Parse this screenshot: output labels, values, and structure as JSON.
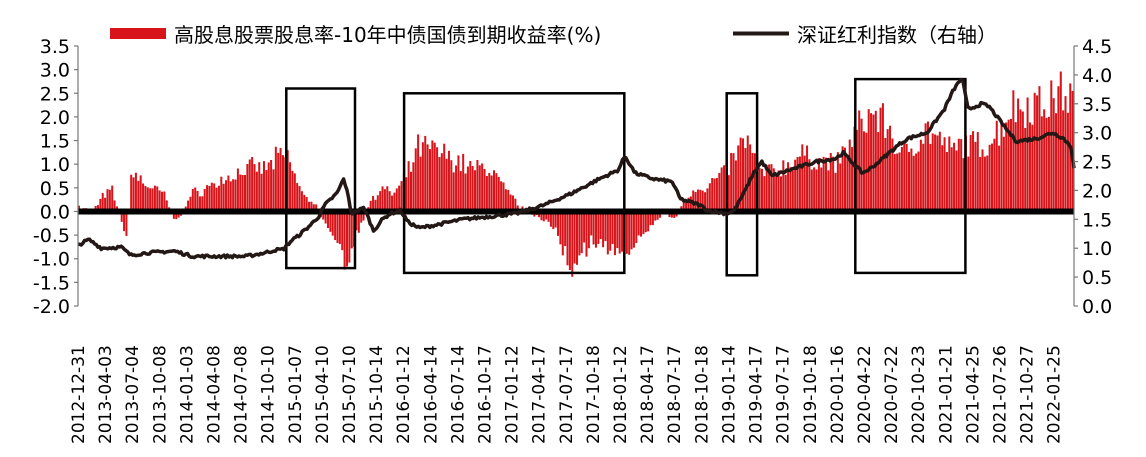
{
  "chart_data": {
    "type": "bar+line",
    "legend_position": "top",
    "grid": false,
    "colors": {
      "bars": "#d7141a",
      "line": "#231815",
      "zero_line": "#000000",
      "boxes": "#000000"
    },
    "series": [
      {
        "name": "高股息股票股息率-10年中债国债到期收益率(%)",
        "type": "bar",
        "axis": "left"
      },
      {
        "name": "深证红利指数（右轴）",
        "type": "line",
        "axis": "right"
      }
    ],
    "left_axis": {
      "min": -2.0,
      "max": 3.5,
      "ticks": [
        "3.5",
        "3.0",
        "2.5",
        "2.0",
        "1.5",
        "1.0",
        "0.5",
        "0.0",
        "-0.5",
        "-1.0",
        "-1.5",
        "-2.0"
      ]
    },
    "right_axis": {
      "min": 0.0,
      "max": 4.5,
      "ticks": [
        "4.5",
        "4.0",
        "3.5",
        "3.0",
        "2.5",
        "2.0",
        "1.5",
        "1.0",
        "0.5",
        "0.0"
      ]
    },
    "x_ticks": [
      "2012-12-31",
      "2013-04-03",
      "2013-07-04",
      "2013-10-08",
      "2014-01-03",
      "2014-04-08",
      "2014-07-08",
      "2014-10-10",
      "2015-01-07",
      "2015-04-10",
      "2015-07-10",
      "2015-10-14",
      "2016-01-12",
      "2016-04-14",
      "2016-07-14",
      "2016-10-17",
      "2017-01-12",
      "2017-04-17",
      "2017-07-17",
      "2017-10-18",
      "2018-01-12",
      "2018-04-17",
      "2018-07-17",
      "2018-10-18",
      "2019-01-14",
      "2019-04-17",
      "2019-07-17",
      "2019-10-18",
      "2020-01-16",
      "2020-04-22",
      "2020-07-22",
      "2020-10-23",
      "2021-01-21",
      "2021-04-25",
      "2021-07-26",
      "2021-10-27",
      "2022-01-25"
    ],
    "spread_keypoints": [
      [
        "2012-12-31",
        0.1
      ],
      [
        "2013-02-15",
        0.0
      ],
      [
        "2013-03-15",
        0.3
      ],
      [
        "2013-04-20",
        0.5
      ],
      [
        "2013-06-10",
        -0.6
      ],
      [
        "2013-06-25",
        0.9
      ],
      [
        "2013-08-20",
        0.6
      ],
      [
        "2013-10-15",
        0.4
      ],
      [
        "2013-11-20",
        -0.3
      ],
      [
        "2013-12-20",
        0.1
      ],
      [
        "2014-01-15",
        0.4
      ],
      [
        "2014-03-20",
        0.6
      ],
      [
        "2014-05-20",
        0.8
      ],
      [
        "2014-07-20",
        1.0
      ],
      [
        "2014-09-20",
        1.0
      ],
      [
        "2014-11-10",
        1.3
      ],
      [
        "2014-12-10",
        1.2
      ],
      [
        "2015-01-05",
        0.6
      ],
      [
        "2015-02-10",
        0.3
      ],
      [
        "2015-03-20",
        0.0
      ],
      [
        "2015-04-15",
        -0.4
      ],
      [
        "2015-05-20",
        -0.8
      ],
      [
        "2015-06-25",
        -1.3
      ],
      [
        "2015-07-20",
        -0.6
      ],
      [
        "2015-08-25",
        0.0
      ],
      [
        "2015-09-15",
        0.4
      ],
      [
        "2015-10-20",
        0.5
      ],
      [
        "2015-11-20",
        0.4
      ],
      [
        "2015-12-20",
        0.6
      ],
      [
        "2016-01-25",
        1.1
      ],
      [
        "2016-02-15",
        1.5
      ],
      [
        "2016-04-15",
        1.4
      ],
      [
        "2016-06-15",
        1.2
      ],
      [
        "2016-08-15",
        1.0
      ],
      [
        "2016-10-15",
        1.0
      ],
      [
        "2016-12-15",
        0.4
      ],
      [
        "2017-01-20",
        0.1
      ],
      [
        "2017-03-20",
        -0.1
      ],
      [
        "2017-05-20",
        -0.4
      ],
      [
        "2017-07-17",
        -1.5
      ],
      [
        "2017-09-20",
        -0.6
      ],
      [
        "2017-11-20",
        -0.9
      ],
      [
        "2018-01-12",
        -0.9
      ],
      [
        "2018-03-20",
        -0.5
      ],
      [
        "2018-05-20",
        0.0
      ],
      [
        "2018-06-20",
        -0.2
      ],
      [
        "2018-08-20",
        0.5
      ],
      [
        "2018-10-18",
        0.6
      ],
      [
        "2018-12-20",
        1.0
      ],
      [
        "2019-01-14",
        1.3
      ],
      [
        "2019-02-20",
        1.7
      ],
      [
        "2019-03-20",
        1.2
      ],
      [
        "2019-04-17",
        0.9
      ],
      [
        "2019-06-20",
        1.0
      ],
      [
        "2019-08-20",
        1.3
      ],
      [
        "2019-10-18",
        1.2
      ],
      [
        "2019-12-20",
        1.1
      ],
      [
        "2020-01-20",
        1.4
      ],
      [
        "2020-03-20",
        2.1
      ],
      [
        "2020-04-22",
        2.3
      ],
      [
        "2020-06-20",
        1.9
      ],
      [
        "2020-07-22",
        1.2
      ],
      [
        "2020-08-20",
        1.5
      ],
      [
        "2020-10-23",
        1.9
      ],
      [
        "2020-12-20",
        1.5
      ],
      [
        "2021-01-21",
        1.4
      ],
      [
        "2021-02-20",
        1.6
      ],
      [
        "2021-04-25",
        1.5
      ],
      [
        "2021-06-20",
        1.9
      ],
      [
        "2021-07-26",
        2.4
      ],
      [
        "2021-09-20",
        2.5
      ],
      [
        "2021-10-27",
        2.5
      ],
      [
        "2021-12-20",
        2.6
      ],
      [
        "2022-01-25",
        2.8
      ],
      [
        "2022-03-01",
        2.5
      ]
    ],
    "index_keypoints": [
      [
        "2012-12-31",
        1.05
      ],
      [
        "2013-02-05",
        1.15
      ],
      [
        "2013-03-20",
        1.0
      ],
      [
        "2013-05-25",
        1.02
      ],
      [
        "2013-06-25",
        0.88
      ],
      [
        "2013-08-20",
        0.92
      ],
      [
        "2013-11-20",
        0.95
      ],
      [
        "2014-01-20",
        0.86
      ],
      [
        "2014-05-20",
        0.86
      ],
      [
        "2014-07-20",
        0.86
      ],
      [
        "2014-09-20",
        0.92
      ],
      [
        "2014-10-25",
        0.97
      ],
      [
        "2014-11-20",
        0.98
      ],
      [
        "2014-12-22",
        1.15
      ],
      [
        "2015-01-07",
        1.2
      ],
      [
        "2015-02-20",
        1.4
      ],
      [
        "2015-03-20",
        1.55
      ],
      [
        "2015-04-10",
        1.75
      ],
      [
        "2015-05-20",
        1.95
      ],
      [
        "2015-06-12",
        2.2
      ],
      [
        "2015-06-25",
        1.95
      ],
      [
        "2015-07-08",
        1.6
      ],
      [
        "2015-08-20",
        1.7
      ],
      [
        "2015-09-20",
        1.3
      ],
      [
        "2015-10-20",
        1.5
      ],
      [
        "2015-11-15",
        1.6
      ],
      [
        "2015-12-20",
        1.65
      ],
      [
        "2016-01-15",
        1.45
      ],
      [
        "2016-02-20",
        1.35
      ],
      [
        "2016-04-14",
        1.4
      ],
      [
        "2016-07-14",
        1.5
      ],
      [
        "2016-10-17",
        1.55
      ],
      [
        "2017-01-12",
        1.6
      ],
      [
        "2017-04-17",
        1.75
      ],
      [
        "2017-07-17",
        1.95
      ],
      [
        "2017-10-18",
        2.2
      ],
      [
        "2017-12-20",
        2.35
      ],
      [
        "2018-01-12",
        2.6
      ],
      [
        "2018-02-15",
        2.3
      ],
      [
        "2018-04-17",
        2.2
      ],
      [
        "2018-06-20",
        2.15
      ],
      [
        "2018-07-17",
        1.85
      ],
      [
        "2018-09-20",
        1.75
      ],
      [
        "2018-10-18",
        1.65
      ],
      [
        "2018-12-20",
        1.6
      ],
      [
        "2019-01-14",
        1.65
      ],
      [
        "2019-02-20",
        2.0
      ],
      [
        "2019-03-20",
        2.3
      ],
      [
        "2019-04-17",
        2.5
      ],
      [
        "2019-05-20",
        2.25
      ],
      [
        "2019-07-17",
        2.35
      ],
      [
        "2019-10-18",
        2.5
      ],
      [
        "2019-12-20",
        2.55
      ],
      [
        "2020-01-16",
        2.65
      ],
      [
        "2020-03-20",
        2.3
      ],
      [
        "2020-04-22",
        2.4
      ],
      [
        "2020-07-22",
        2.8
      ],
      [
        "2020-08-20",
        2.9
      ],
      [
        "2020-10-23",
        3.0
      ],
      [
        "2020-12-20",
        3.4
      ],
      [
        "2021-01-21",
        3.75
      ],
      [
        "2021-02-18",
        3.95
      ],
      [
        "2021-03-10",
        3.4
      ],
      [
        "2021-04-25",
        3.5
      ],
      [
        "2021-05-20",
        3.45
      ],
      [
        "2021-07-26",
        3.0
      ],
      [
        "2021-08-20",
        2.85
      ],
      [
        "2021-10-27",
        2.9
      ],
      [
        "2021-12-20",
        3.0
      ],
      [
        "2022-01-25",
        2.9
      ],
      [
        "2022-02-20",
        2.75
      ],
      [
        "2022-03-01",
        2.4
      ]
    ],
    "highlight_boxes": [
      {
        "start": "2014-12-01",
        "end": "2015-07-20",
        "spread_top": 2.6,
        "spread_bottom": -1.2
      },
      {
        "start": "2016-01-01",
        "end": "2018-01-10",
        "spread_top": 2.5,
        "spread_bottom": -1.3
      },
      {
        "start": "2018-12-20",
        "end": "2019-04-01",
        "spread_top": 2.5,
        "spread_bottom": -1.35
      },
      {
        "start": "2020-02-25",
        "end": "2021-03-01",
        "spread_top": 2.8,
        "spread_bottom": -1.3
      }
    ]
  }
}
